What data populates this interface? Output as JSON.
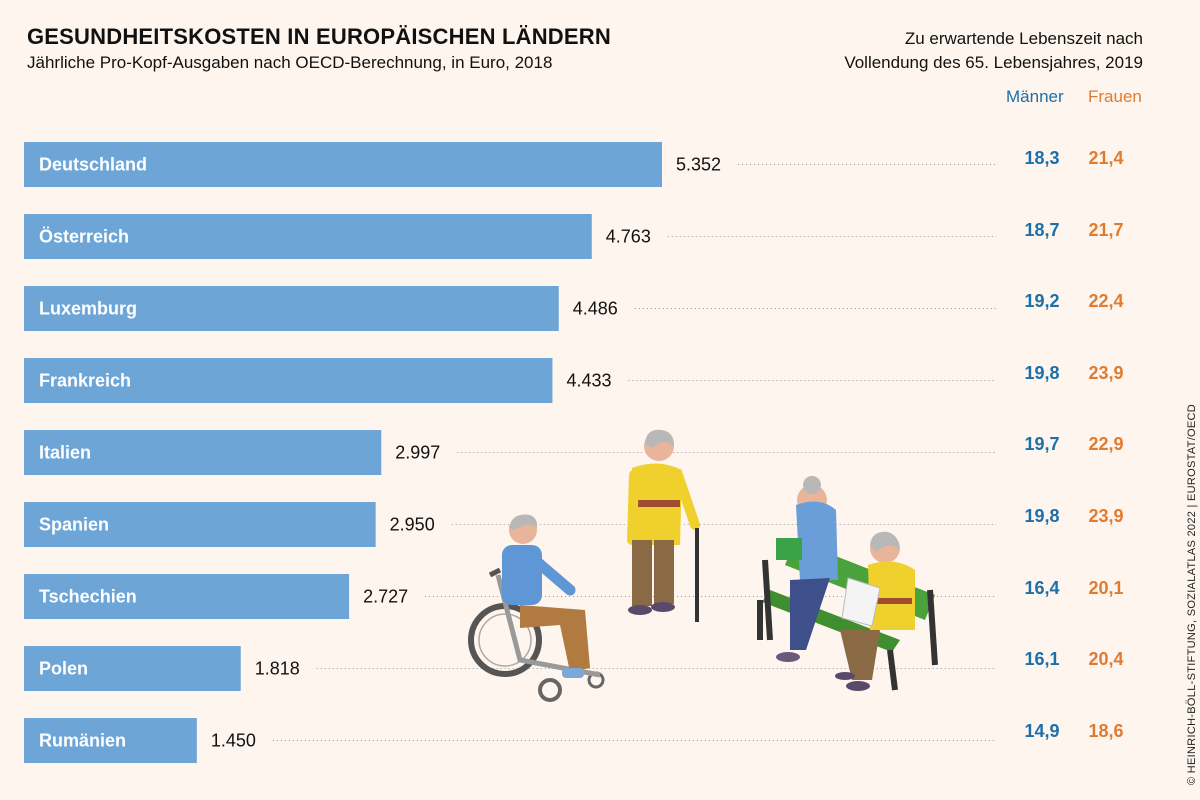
{
  "header": {
    "title": "GESUNDHEITSKOSTEN IN EUROPÄISCHEN LÄNDERN",
    "subtitle": "Jährliche Pro-Kopf-Ausgaben nach OECD-Berechnung, in Euro, 2018",
    "life_title_line1": "Zu erwartende Lebenszeit nach",
    "life_title_line2": "Vollendung des 65. Lebensjahres, 2019",
    "legend_men": "Männer",
    "legend_women": "Frauen"
  },
  "source": "© HEINRICH-BÖLL-STIFTUNG, SOZIALATLAS 2022 | EUROSTAT/OECD",
  "colors": {
    "bar": "#6ea5d7",
    "men": "#1d6fa9",
    "women": "#e07b30",
    "background": "#fdf5ee"
  },
  "chart_data": {
    "type": "bar",
    "orientation": "horizontal",
    "categories": [
      "Deutschland",
      "Österreich",
      "Luxemburg",
      "Frankreich",
      "Italien",
      "Spanien",
      "Tschechien",
      "Polen",
      "Rumänien"
    ],
    "values": [
      5352,
      4763,
      4486,
      4433,
      2997,
      2950,
      2727,
      1818,
      1450
    ],
    "value_labels": [
      "5.352",
      "4.763",
      "4.486",
      "4.433",
      "2.997",
      "2.950",
      "2.727",
      "1.818",
      "1.450"
    ],
    "life_expectancy": {
      "men": [
        "18,3",
        "18,7",
        "19,2",
        "19,8",
        "19,7",
        "19,8",
        "16,4",
        "16,1",
        "14,9"
      ],
      "women": [
        "21,4",
        "21,7",
        "22,4",
        "23,9",
        "22,9",
        "23,9",
        "20,1",
        "20,4",
        "18,6"
      ]
    },
    "xlim": [
      0,
      5352
    ],
    "grid": false
  }
}
